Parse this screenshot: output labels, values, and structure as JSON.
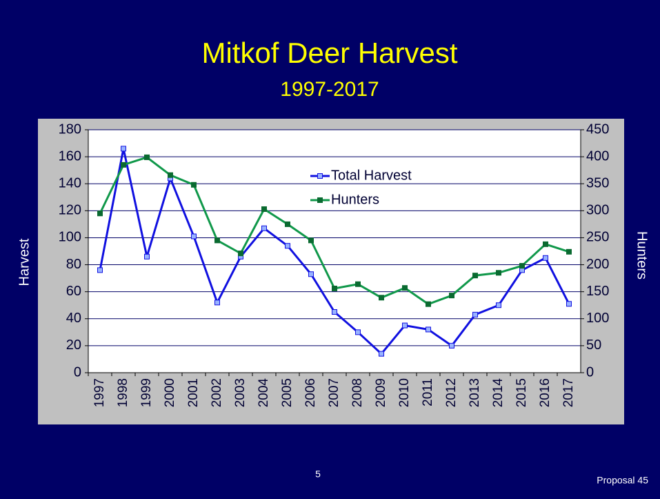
{
  "chart_data": {
    "type": "line",
    "title": "Mitkof Deer Harvest",
    "subtitle": "1997-2017",
    "y_label": "Harvest",
    "y2_label": "Hunters",
    "categories": [
      "1997",
      "1998",
      "1999",
      "2000",
      "2001",
      "2002",
      "2003",
      "2004",
      "2005",
      "2006",
      "2007",
      "2008",
      "2009",
      "2010",
      "2011",
      "2012",
      "2013",
      "2014",
      "2015",
      "2016",
      "2017"
    ],
    "series": [
      {
        "name": "Total Harvest",
        "color": "#1010e0",
        "marker_fill": "#99b3ff",
        "values": [
          76,
          166,
          86,
          144,
          101,
          52,
          86,
          107,
          94,
          73,
          45,
          30,
          14,
          35,
          32,
          20,
          43,
          50,
          76,
          85,
          51
        ]
      },
      {
        "name": "Hunters",
        "color": "#10984a",
        "marker_fill": "#0a6a30",
        "axis": "y2",
        "values": [
          295,
          385,
          399,
          366,
          348,
          245,
          221,
          303,
          275,
          245,
          156,
          164,
          139,
          157,
          127,
          143,
          180,
          185,
          198,
          238,
          224
        ]
      }
    ],
    "ylim": [
      0,
      180
    ],
    "yticks": [
      0,
      20,
      40,
      60,
      80,
      100,
      120,
      140,
      160,
      180
    ],
    "y2lim": [
      0,
      450
    ],
    "y2ticks": [
      0,
      50,
      100,
      150,
      200,
      250,
      300,
      350,
      400,
      450
    ],
    "grid": true
  },
  "page_number": "5",
  "footer": "Proposal 45"
}
